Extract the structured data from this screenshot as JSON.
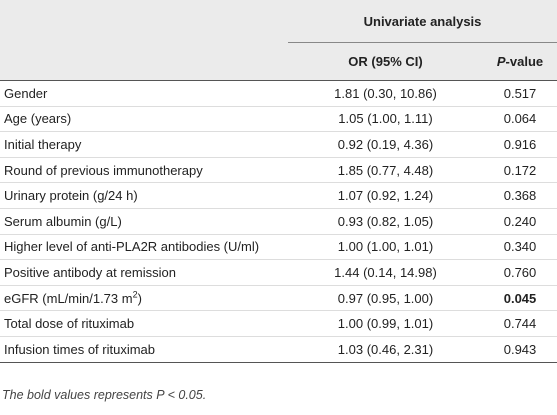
{
  "table": {
    "group_header": "Univariate analysis",
    "or_header": "OR (95% CI)",
    "p_header": {
      "italic": "P",
      "rest": "-value"
    },
    "rows": [
      {
        "label": "Gender",
        "or": "1.81 (0.30, 10.86)",
        "p": "0.517"
      },
      {
        "label": "Age (years)",
        "or": "1.05 (1.00, 1.11)",
        "p": "0.064"
      },
      {
        "label": "Initial therapy",
        "or": "0.92 (0.19, 4.36)",
        "p": "0.916"
      },
      {
        "label": "Round of previous immunotherapy",
        "or": "1.85 (0.77, 4.48)",
        "p": "0.172"
      },
      {
        "label": "Urinary protein (g/24 h)",
        "or": "1.07 (0.92, 1.24)",
        "p": "0.368"
      },
      {
        "label": "Serum albumin (g/L)",
        "or": "0.93 (0.82, 1.05)",
        "p": "0.240"
      },
      {
        "label": "Higher level of anti-PLA2R antibodies (U/ml)",
        "or": "1.00 (1.00, 1.01)",
        "p": "0.340"
      },
      {
        "label": "Positive antibody at remission",
        "or": "1.44 (0.14, 14.98)",
        "p": "0.760"
      },
      {
        "label": {
          "text": "eGFR (mL/min/1.73 m",
          "sup": "2",
          "after": ")"
        },
        "or": "0.97 (0.95, 1.00)",
        "p": "0.045",
        "bold": true
      },
      {
        "label": "Total dose of rituximab",
        "or": "1.00 (0.99, 1.01)",
        "p": "0.744"
      },
      {
        "label": "Infusion times of rituximab",
        "or": "1.03 (0.46, 2.31)",
        "p": "0.943"
      }
    ],
    "footnote": "The bold values represents P < 0.05."
  }
}
